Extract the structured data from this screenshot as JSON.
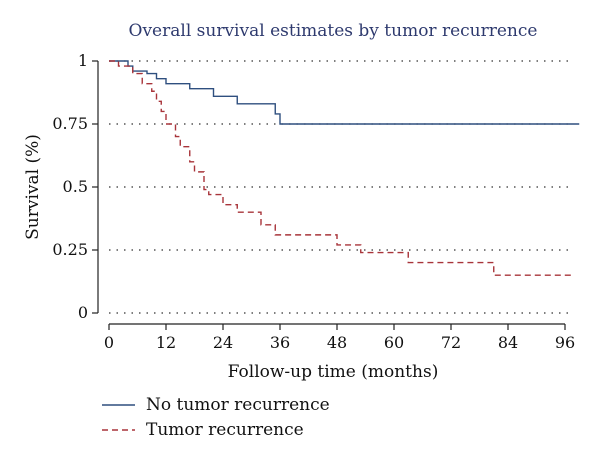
{
  "chart_data": {
    "type": "line",
    "title": "Overall survival estimates by tumor recurrence",
    "xlabel": "Follow-up time (months)",
    "ylabel": "Survival (%)",
    "xlim": [
      0,
      100
    ],
    "ylim": [
      0,
      1
    ],
    "x_ticks": [
      0,
      12,
      24,
      36,
      48,
      60,
      72,
      84,
      96
    ],
    "y_ticks": [
      {
        "value": 0,
        "label": "0"
      },
      {
        "value": 0.25,
        "label": "0.25"
      },
      {
        "value": 0.5,
        "label": "0.5"
      },
      {
        "value": 0.75,
        "label": "0.75"
      },
      {
        "value": 1,
        "label": "1"
      }
    ],
    "grid": "horizontal-dotted",
    "legend_position": "bottom-left",
    "series": [
      {
        "name": "No tumor recurrence",
        "color": "#2f4f7f",
        "style": "solid",
        "step_points": [
          [
            0,
            1.0
          ],
          [
            4,
            0.98
          ],
          [
            5,
            0.96
          ],
          [
            8,
            0.95
          ],
          [
            10,
            0.93
          ],
          [
            12,
            0.91
          ],
          [
            17,
            0.89
          ],
          [
            22,
            0.86
          ],
          [
            27,
            0.83
          ],
          [
            35,
            0.79
          ],
          [
            36,
            0.75
          ],
          [
            99,
            0.75
          ]
        ]
      },
      {
        "name": "Tumor recurrence",
        "color": "#a8343a",
        "style": "dashed",
        "step_points": [
          [
            0,
            1.0
          ],
          [
            2,
            0.98
          ],
          [
            5,
            0.95
          ],
          [
            7,
            0.91
          ],
          [
            9,
            0.88
          ],
          [
            10,
            0.84
          ],
          [
            11,
            0.8
          ],
          [
            12,
            0.75
          ],
          [
            14,
            0.7
          ],
          [
            15,
            0.66
          ],
          [
            17,
            0.6
          ],
          [
            18,
            0.56
          ],
          [
            20,
            0.49
          ],
          [
            21,
            0.47
          ],
          [
            24,
            0.43
          ],
          [
            27,
            0.4
          ],
          [
            32,
            0.35
          ],
          [
            35,
            0.31
          ],
          [
            48,
            0.27
          ],
          [
            53,
            0.24
          ],
          [
            63,
            0.2
          ],
          [
            81,
            0.15
          ],
          [
            98,
            0.15
          ]
        ]
      }
    ]
  }
}
